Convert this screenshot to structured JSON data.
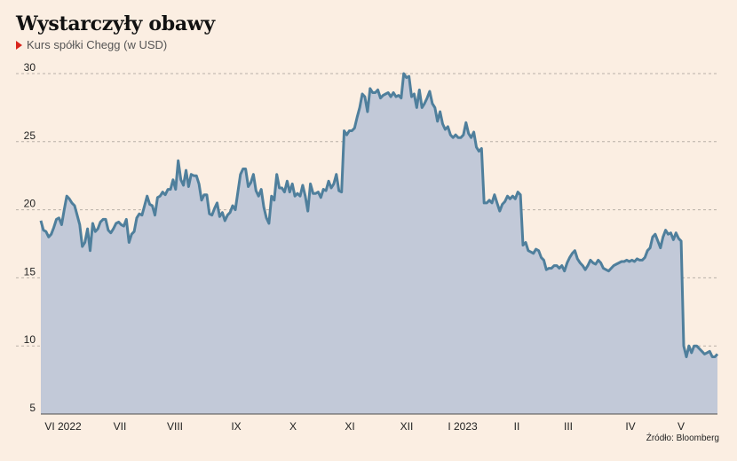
{
  "header": {
    "title": "Wystarczyły obawy",
    "subtitle": "Kurs spółki Chegg (w USD)",
    "subtitle_icon": "red-triangle-icon"
  },
  "footer": {
    "source": "Źródło: Bloomberg"
  },
  "colors": {
    "background": "#fbeee2",
    "line": "#4f7f9c",
    "area": "#c2c9d8",
    "grid": "#b9b0a8",
    "marker": "#d9241c"
  },
  "chart_data": {
    "type": "area",
    "title": "Wystarczyły obawy",
    "subtitle": "Kurs spółki Chegg (w USD)",
    "ylim": [
      5,
      30
    ],
    "y_ticks": [
      5,
      10,
      15,
      20,
      25,
      30
    ],
    "x_tick_labels": [
      "VI 2022",
      "VII",
      "VIII",
      "IX",
      "X",
      "XI",
      "XII",
      "I 2023",
      "II",
      "III",
      "IV",
      "V"
    ],
    "grid": "horizontal dashed",
    "series": [
      {
        "values": [
          19.2,
          18.5,
          18.4,
          18.0,
          18.2,
          18.7,
          19.3,
          19.4,
          18.9,
          20.0,
          21.0,
          20.8,
          20.5,
          20.3,
          19.6,
          18.9,
          17.3,
          17.6,
          18.6,
          17.0,
          19.0,
          18.4,
          18.6,
          19.1,
          19.3,
          19.3,
          18.5,
          18.3,
          18.6,
          19.0,
          19.1,
          18.9,
          18.8,
          19.3,
          17.6,
          18.2,
          18.4,
          19.4,
          19.7,
          19.6,
          20.3,
          21.0,
          20.4,
          20.3,
          19.6,
          20.9,
          21.0,
          21.3,
          21.1,
          21.5,
          21.5,
          22.2,
          21.5,
          23.6,
          22.2,
          21.8,
          22.9,
          21.7,
          22.6,
          22.5,
          22.5,
          21.9,
          20.7,
          21.1,
          21.1,
          19.7,
          19.6,
          20.1,
          20.5,
          19.5,
          19.8,
          19.2,
          19.6,
          19.8,
          20.3,
          20.0,
          21.3,
          22.6,
          23.0,
          23.0,
          21.7,
          22.0,
          22.6,
          21.4,
          21.0,
          21.5,
          20.2,
          19.4,
          19.0,
          21.0,
          20.7,
          22.6,
          21.6,
          21.6,
          21.3,
          22.1,
          21.3,
          21.9,
          21.0,
          21.2,
          21.0,
          21.8,
          21.0,
          19.9,
          21.9,
          21.2,
          21.2,
          21.3,
          20.9,
          21.5,
          21.4,
          22.1,
          21.6,
          21.9,
          22.6,
          21.4,
          21.3,
          25.8,
          25.5,
          25.8,
          25.8,
          26.0,
          26.8,
          27.5,
          28.5,
          28.3,
          27.2,
          28.9,
          28.6,
          28.6,
          28.8,
          28.2,
          28.4,
          28.5,
          28.6,
          28.3,
          28.6,
          28.3,
          28.4,
          28.2,
          30.0,
          29.7,
          29.8,
          28.3,
          28.5,
          27.5,
          28.8,
          27.5,
          27.8,
          28.2,
          28.7,
          27.8,
          27.5,
          26.5,
          27.2,
          26.3,
          25.9,
          26.1,
          25.5,
          25.3,
          25.5,
          25.3,
          25.3,
          25.5,
          26.4,
          25.6,
          25.3,
          25.7,
          24.6,
          24.3,
          24.5,
          20.5,
          20.5,
          20.7,
          20.5,
          21.1,
          20.5,
          19.9,
          20.4,
          20.6,
          21.0,
          20.8,
          21.0,
          20.8,
          21.3,
          21.1,
          17.4,
          17.6,
          17.0,
          16.9,
          16.8,
          17.1,
          17.0,
          16.5,
          16.3,
          15.6,
          15.7,
          15.7,
          15.9,
          15.9,
          15.7,
          15.9,
          15.5,
          16.1,
          16.5,
          16.8,
          17.0,
          16.4,
          16.1,
          15.9,
          15.6,
          15.9,
          16.3,
          16.1,
          16.0,
          16.3,
          16.1,
          15.7,
          15.6,
          15.5,
          15.7,
          15.9,
          16.0,
          16.1,
          16.2,
          16.2,
          16.3,
          16.2,
          16.3,
          16.2,
          16.4,
          16.3,
          16.3,
          16.5,
          17.0,
          17.2,
          18.0,
          18.2,
          17.7,
          17.2,
          18.0,
          18.5,
          18.2,
          18.3,
          17.8,
          18.3,
          17.9,
          17.7,
          10.0,
          9.2,
          10.0,
          9.5,
          10.0,
          10.0,
          9.8,
          9.6,
          9.4,
          9.5,
          9.6,
          9.2,
          9.2,
          9.4
        ]
      }
    ]
  }
}
